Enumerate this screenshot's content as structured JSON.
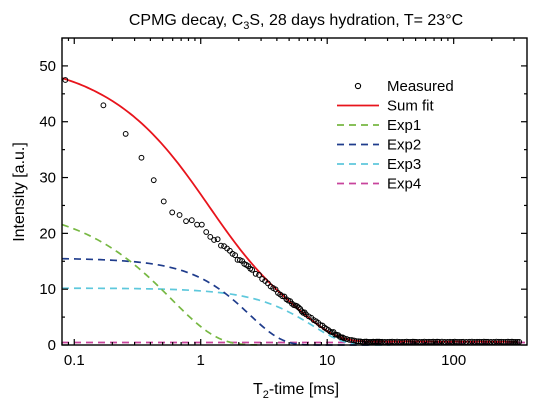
{
  "chart_data": {
    "type": "line",
    "title_parts": [
      "CPMG decay, C",
      "3",
      "S, 28 days hydration, T= 23°C"
    ],
    "xlabel_parts": [
      "T",
      "2",
      "-time [ms]"
    ],
    "ylabel": "Intensity [a.u.]",
    "x_scale": "log",
    "xlim": [
      0.08,
      380
    ],
    "ylim": [
      0,
      55
    ],
    "x_ticks": [
      0.1,
      1,
      10,
      100
    ],
    "x_tick_labels": [
      "0.1",
      "1",
      "10",
      "100"
    ],
    "y_ticks": [
      0,
      10,
      20,
      30,
      40,
      50
    ],
    "y_tick_labels": [
      "0",
      "10",
      "20",
      "30",
      "40",
      "50"
    ],
    "grid": false,
    "legend_position": "top-right",
    "legend": [
      {
        "name": "Measured",
        "style": "marker",
        "color": "#000000"
      },
      {
        "name": "Sum fit",
        "style": "solid",
        "color": "#e8141c"
      },
      {
        "name": "Exp1",
        "style": "dashed",
        "color": "#77b843"
      },
      {
        "name": "Exp2",
        "style": "dashed",
        "color": "#1f3c8c"
      },
      {
        "name": "Exp3",
        "style": "dashed",
        "color": "#5ec8dc"
      },
      {
        "name": "Exp4",
        "style": "dashed",
        "color": "#c8449c"
      }
    ],
    "measured": {
      "x": [
        0.085,
        0.17,
        0.255,
        0.34,
        0.425,
        0.51,
        0.595,
        0.68,
        0.765,
        0.85,
        0.935,
        1.02,
        1.105,
        1.19,
        1.275,
        1.36,
        1.445,
        1.53,
        1.615,
        1.7,
        1.785,
        1.87,
        1.955,
        2.04,
        2.125,
        2.21,
        2.295,
        2.38,
        2.465,
        2.55,
        2.72,
        2.89,
        3.06,
        3.23,
        3.4,
        3.57,
        3.74,
        3.91,
        4.08,
        4.25,
        4.42,
        4.59,
        4.76,
        4.93,
        5.1,
        5.27,
        5.44,
        5.61,
        5.78,
        5.95,
        6.12,
        6.29,
        6.46,
        6.63,
        6.8,
        7.14,
        7.48,
        7.82,
        8.16,
        8.5,
        8.84,
        9.18,
        9.52,
        9.86,
        10.2,
        10.54,
        10.88,
        11.22,
        11.56,
        11.9,
        12.24,
        12.58,
        12.92,
        13.26,
        13.6,
        14.28,
        14.96,
        15.64,
        16.32,
        17,
        17.68,
        18.36,
        19.04,
        19.72,
        20.4,
        21.08,
        21.76,
        22.44,
        23.12,
        23.8,
        24.48,
        25.16,
        25.84,
        26.52,
        27.2,
        28.56,
        29.92,
        31.28,
        32.64,
        34,
        35.7,
        37.4,
        39.1,
        40.8,
        42.5,
        44.2,
        45.9,
        47.6,
        49.3,
        51,
        53.55,
        56.1,
        58.65,
        61.2,
        63.75,
        66.3,
        68.85,
        71.4,
        73.95,
        76.5,
        80.75,
        85,
        89.25,
        93.5,
        97.75,
        102,
        106.25,
        110.5,
        114.75,
        119,
        125.8,
        132.6,
        139.4,
        146.2,
        153,
        159.8,
        166.6,
        173.4,
        180.2,
        187,
        197.2,
        207.4,
        217.6,
        227.8,
        238,
        248.2,
        258.4,
        268.6,
        278.8,
        289,
        299.2,
        309.4,
        319.6,
        329.8
      ],
      "y": [
        47.48,
        42.94,
        37.82,
        33.55,
        29.53,
        25.72,
        23.75,
        23.29,
        22.19,
        22.36,
        21.56,
        21.56,
        20.24,
        19.37,
        18.81,
        18.95,
        17.81,
        17.7,
        17.29,
        16.88,
        16.34,
        16.09,
        15.26,
        15.22,
        15.05,
        14.54,
        14.35,
        14.12,
        13.68,
        13.47,
        12.75,
        12.55,
        11.81,
        11.47,
        11.04,
        10.48,
        10.2,
        9.95,
        9.33,
        9.05,
        8.74,
        8.68,
        8.19,
        7.96,
        7.85,
        7.4,
        7.15,
        7.08,
        6.95,
        6.71,
        6.46,
        6.04,
        5.76,
        5.83,
        5.48,
        5.13,
        4.88,
        4.47,
        4.26,
        3.95,
        3.58,
        3.49,
        3.13,
        2.89,
        2.69,
        2.41,
        2.3,
        2.33,
        1.87,
        1.83,
        1.77,
        1.46,
        1.39,
        1.36,
        1.2,
        1.07,
        0.92,
        0.9,
        0.8,
        0.68,
        0.66,
        0.64,
        0.56,
        0.61,
        0.63,
        0.55,
        0.55,
        0.55,
        0.59,
        0.56,
        0.59,
        0.59,
        0.59,
        0.54,
        0.58,
        0.55,
        0.55,
        0.57,
        0.6,
        0.56,
        0.59,
        0.55,
        0.55,
        0.55,
        0.59,
        0.55,
        0.55,
        0.6,
        0.58,
        0.55,
        0.55,
        0.55,
        0.59,
        0.55,
        0.58,
        0.55,
        0.6,
        0.55,
        0.59,
        0.57,
        0.6,
        0.55,
        0.56,
        0.58,
        0.55,
        0.6,
        0.56,
        0.56,
        0.55,
        0.57,
        0.55,
        0.58,
        0.6,
        0.55,
        0.58,
        0.58,
        0.55,
        0.59,
        0.58,
        0.57,
        0.55,
        0.55,
        0.6,
        0.58,
        0.58,
        0.55,
        0.55,
        0.59,
        0.56,
        0.6,
        0.55,
        0.56,
        0.56,
        0.55
      ]
    },
    "series": [
      {
        "name": "Sum fit",
        "x": [
          0.08,
          0.0843,
          0.0887,
          0.0934,
          0.0984,
          0.1036,
          0.1091,
          0.1148,
          0.1209,
          0.1273,
          0.134,
          0.1411,
          0.1486,
          0.1564,
          0.1647,
          0.1734,
          0.1826,
          0.1923,
          0.2025,
          0.2132,
          0.2245,
          0.2364,
          0.2489,
          0.262,
          0.2759,
          0.2905,
          0.3059,
          0.3221,
          0.3391,
          0.3571,
          0.376,
          0.3959,
          0.4168,
          0.4389,
          0.4621,
          0.4866,
          0.5124,
          0.5395,
          0.5681,
          0.5982,
          0.6299,
          0.6632,
          0.6983,
          0.7353,
          0.7743,
          0.8153,
          0.8584,
          0.9039,
          0.9518,
          1.0022,
          1.0553,
          1.1112,
          1.17,
          1.232,
          1.2972,
          1.366,
          1.4383,
          1.5145,
          1.5947,
          1.6792,
          1.7681,
          1.8618,
          1.9604,
          2.0642,
          2.1736,
          2.2887,
          2.4099,
          2.5376,
          2.672,
          2.8135,
          2.9626,
          3.1195,
          3.2847,
          3.4587,
          3.6419,
          3.8348,
          4.0379,
          4.2518,
          4.477,
          4.7142,
          4.9639,
          5.2268,
          5.5037,
          5.7952,
          6.1022,
          6.4254,
          6.7658,
          7.1242,
          7.5015,
          7.8989,
          8.3173,
          8.7578,
          9.2217,
          9.7102,
          10.2245,
          10.7661,
          11.3364,
          11.9368,
          12.5691,
          13.2349,
          13.9359,
          14.6741,
          15.4514,
          16.2698,
          17.1316,
          18.0391,
          18.9946,
          20.0007,
          21.0601,
          22.1756,
          23.3503,
          24.5871,
          25.8894,
          27.2608,
          28.7048,
          30.2252,
          31.8262,
          33.512,
          35.2871,
          37.1563,
          39.1244,
          41.1968,
          43.379,
          45.6767,
          48.0962,
          50.6438,
          53.3264,
          56.151,
          59.1253,
          62.2571,
          65.5548,
          69.0272,
          72.6835,
          76.5335,
          80.5874,
          84.8561,
          89.351,
          94.0838,
          99.0674,
          104.3149,
          109.8404,
          115.6585,
          121.785,
          128.2359,
          135.0283,
          142.1806,
          149.7118,
          157.6419,
          165.992,
          174.7844,
          184.0425,
          193.7911,
          204.0561,
          214.8648,
          226.2461,
          238.2302,
          250.849,
          264.1362,
          278.1272,
          292.8593,
          308.3719,
          324.7062
        ],
        "y": [
          47.81,
          47.66,
          47.49,
          47.32,
          47.14,
          46.95,
          46.76,
          46.55,
          46.34,
          46.11,
          45.88,
          45.64,
          45.38,
          45.12,
          44.85,
          44.57,
          44.27,
          43.96,
          43.64,
          43.31,
          42.97,
          42.62,
          42.25,
          41.87,
          41.47,
          41.07,
          40.64,
          40.21,
          39.76,
          39.29,
          38.81,
          38.31,
          37.8,
          37.27,
          36.73,
          36.18,
          35.6,
          35.01,
          34.41,
          33.79,
          33.16,
          32.52,
          31.86,
          31.19,
          30.5,
          29.81,
          29.11,
          28.4,
          27.68,
          26.96,
          26.23,
          25.5,
          24.77,
          24.04,
          23.31,
          22.58,
          21.86,
          21.14,
          20.43,
          19.73,
          19.04,
          18.36,
          17.7,
          17.04,
          16.4,
          15.77,
          15.16,
          14.56,
          13.98,
          13.41,
          12.86,
          12.31,
          11.79,
          11.27,
          10.77,
          10.27,
          9.79,
          9.31,
          8.85,
          8.39,
          7.93,
          7.48,
          7.04,
          6.6,
          6.17,
          5.74,
          5.32,
          4.91,
          4.51,
          4.12,
          3.74,
          3.38,
          3.03,
          2.7,
          2.39,
          2.11,
          1.86,
          1.63,
          1.43,
          1.25,
          1.11,
          0.99,
          0.89,
          0.81,
          0.75,
          0.71,
          0.68,
          0.66,
          0.65,
          0.64,
          0.63,
          0.63,
          0.63,
          0.63,
          0.63,
          0.62,
          0.62,
          0.62,
          0.62,
          0.62,
          0.62,
          0.62,
          0.62,
          0.62,
          0.62,
          0.62,
          0.62,
          0.62,
          0.62,
          0.61,
          0.61,
          0.61,
          0.61,
          0.61,
          0.61,
          0.61,
          0.61,
          0.61,
          0.61,
          0.61,
          0.61,
          0.6,
          0.6,
          0.6,
          0.6,
          0.6,
          0.6,
          0.6,
          0.6,
          0.59,
          0.59,
          0.59,
          0.59,
          0.59,
          0.58,
          0.58,
          0.58,
          0.58,
          0.58,
          0.57,
          0.57,
          0.57
        ]
      },
      {
        "name": "Exp1",
        "x": [
          0.08,
          0.0861,
          0.0926,
          0.0996,
          0.1072,
          0.1154,
          0.1241,
          0.1336,
          0.1437,
          0.1546,
          0.1664,
          0.179,
          0.1926,
          0.2072,
          0.223,
          0.2399,
          0.2581,
          0.2777,
          0.2988,
          0.3215,
          0.3459,
          0.3722,
          0.4004,
          0.4308,
          0.4635,
          0.4987,
          0.5366,
          0.5774,
          0.6212,
          0.6684,
          0.7191,
          0.7738,
          0.8325,
          0.8957,
          0.9638,
          1.0369,
          1.1157,
          1.2004,
          1.2915,
          1.3896,
          1.4951,
          1.6087,
          1.7308,
          1.8623,
          2.0037,
          2.1558,
          2.3196,
          2.4957,
          2.6852,
          2.8891
        ],
        "y": [
          21.57,
          21.33,
          21.07,
          20.8,
          20.51,
          20.21,
          19.88,
          19.54,
          19.18,
          18.8,
          18.39,
          17.97,
          17.52,
          17.06,
          16.57,
          16.06,
          15.52,
          14.97,
          14.39,
          13.79,
          13.17,
          12.53,
          11.87,
          11.19,
          10.5,
          9.8,
          9.09,
          8.37,
          7.65,
          6.93,
          6.22,
          5.52,
          4.85,
          4.2,
          3.59,
          3.01,
          2.48,
          2.0,
          1.58,
          1.21,
          0.9,
          0.65,
          0.45,
          0.3,
          0.19,
          0.12,
          0.07,
          0.03,
          0.02,
          0.01
        ]
      },
      {
        "name": "Exp2",
        "x": [
          0.08,
          0.0852,
          0.0907,
          0.0966,
          0.1029,
          0.1096,
          0.1167,
          0.1242,
          0.1323,
          0.1409,
          0.15,
          0.1598,
          0.1702,
          0.1812,
          0.193,
          0.2055,
          0.2188,
          0.233,
          0.2482,
          0.2643,
          0.2814,
          0.2997,
          0.3192,
          0.3399,
          0.362,
          0.3855,
          0.4105,
          0.4371,
          0.4655,
          0.4957,
          0.5279,
          0.5622,
          0.5987,
          0.6376,
          0.679,
          0.723,
          0.77,
          0.82,
          0.8732,
          0.9299,
          0.9903,
          1.0545,
          1.123,
          1.1959,
          1.2735,
          1.3562,
          1.4443,
          1.538,
          1.6379,
          1.7442,
          1.8575,
          1.978,
          2.1064,
          2.2432,
          2.3888,
          2.5439,
          2.709,
          2.8849,
          3.0722,
          3.2716,
          3.484,
          3.7102,
          3.9511,
          4.2076,
          4.4807,
          4.7716,
          5.0814,
          5.4112,
          5.7625,
          6.1366,
          6.535,
          6.9592,
          7.411,
          7.8921,
          8.4044,
          8.95,
          9.531,
          10.1498,
          10.8087,
          11.5104,
          12.2576,
          13.0534,
          13.9008,
          14.8032,
          15.7642,
          16.7876,
          17.8774,
          19.0379,
          20.2738,
          21.5899
        ],
        "y": [
          15.46,
          15.45,
          15.44,
          15.43,
          15.42,
          15.4,
          15.39,
          15.37,
          15.35,
          15.33,
          15.31,
          15.29,
          15.26,
          15.24,
          15.21,
          15.17,
          15.14,
          15.1,
          15.06,
          15.01,
          14.96,
          14.91,
          14.85,
          14.78,
          14.71,
          14.63,
          14.54,
          14.45,
          14.34,
          14.23,
          14.1,
          13.96,
          13.81,
          13.65,
          13.47,
          13.28,
          13.07,
          12.84,
          12.59,
          12.33,
          12.04,
          11.73,
          11.39,
          11.04,
          10.66,
          10.25,
          9.82,
          9.37,
          8.89,
          8.38,
          7.86,
          7.32,
          6.76,
          6.19,
          5.61,
          5.03,
          4.45,
          3.89,
          3.35,
          2.83,
          2.34,
          1.89,
          1.49,
          1.14,
          0.85,
          0.61,
          0.42,
          0.27,
          0.17,
          0.1,
          0.05,
          0.03,
          0.01,
          0.01,
          0.0,
          0.0,
          0.0,
          0.0,
          0.0,
          0.0,
          0.0,
          0.0,
          0.0,
          0.0,
          0.0,
          0.0,
          0.0,
          0.0,
          0.0,
          0.0
        ]
      },
      {
        "name": "Exp3",
        "x": [
          0.08,
          0.0863,
          0.0931,
          0.1004,
          0.1083,
          0.1168,
          0.1259,
          0.1358,
          0.1465,
          0.158,
          0.1704,
          0.1838,
          0.1983,
          0.2138,
          0.2306,
          0.2488,
          0.2683,
          0.2894,
          0.3121,
          0.3367,
          0.3631,
          0.3916,
          0.4224,
          0.4556,
          0.4914,
          0.53,
          0.5716,
          0.6165,
          0.665,
          0.7172,
          0.7736,
          0.8343,
          0.8999,
          0.9706,
          1.0468,
          1.1291,
          1.2178,
          1.3135,
          1.4167,
          1.528,
          1.6481,
          1.7776,
          1.9172,
          2.0679,
          2.2303,
          2.4056,
          2.5946,
          2.7984,
          3.0183,
          3.2555,
          3.5112,
          3.7871,
          4.0846,
          4.4056,
          4.7517,
          5.125,
          5.5277,
          5.962,
          6.4304,
          6.9357,
          7.4806,
          8.0684,
          8.7023,
          9.3861,
          10.1235,
          10.9189,
          11.7768,
          12.702,
          13.7,
          14.7764,
          15.9374,
          17.1895,
          18.5401,
          19.9967,
          21.5678,
          23.2624,
          25.0901,
          27.0613,
          29.1875,
          31.4807
        ],
        "y": [
          10.18,
          10.18,
          10.18,
          10.17,
          10.17,
          10.17,
          10.17,
          10.16,
          10.16,
          10.16,
          10.15,
          10.15,
          10.14,
          10.14,
          10.13,
          10.12,
          10.11,
          10.11,
          10.1,
          10.08,
          10.07,
          10.06,
          10.04,
          10.03,
          10.01,
          9.99,
          9.96,
          9.94,
          9.91,
          9.88,
          9.84,
          9.8,
          9.76,
          9.71,
          9.66,
          9.6,
          9.53,
          9.46,
          9.38,
          9.29,
          9.19,
          9.08,
          8.96,
          8.82,
          8.67,
          8.51,
          8.33,
          8.13,
          7.91,
          7.67,
          7.41,
          7.13,
          6.82,
          6.49,
          6.14,
          5.76,
          5.37,
          4.95,
          4.52,
          4.07,
          3.62,
          3.16,
          2.71,
          2.27,
          1.85,
          1.46,
          1.12,
          0.82,
          0.58,
          0.38,
          0.24,
          0.14,
          0.07,
          0.03,
          0.01,
          0.0,
          0.0,
          0.0,
          0.0,
          0.0
        ]
      },
      {
        "name": "Exp4",
        "x": [
          0.08,
          380
        ],
        "y": [
          0.45,
          0.45
        ]
      }
    ]
  }
}
